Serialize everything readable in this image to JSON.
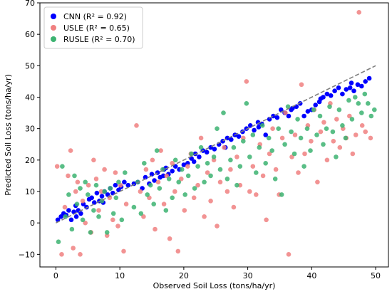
{
  "chart_data": {
    "type": "scatter",
    "title": "",
    "xlabel": "Observed Soil Loss (tons/ha/yr)",
    "ylabel": "Predicted Soil Loss (tons/ha/yr)",
    "xlim": [
      -2.5,
      52
    ],
    "ylim": [
      -14,
      70
    ],
    "xticks": [
      0,
      10,
      20,
      30,
      40,
      50
    ],
    "yticks": [
      -10,
      0,
      10,
      20,
      30,
      40,
      50,
      60,
      70
    ],
    "grid": false,
    "legend_position": "top-left",
    "reference_line": {
      "x": [
        0,
        50
      ],
      "y": [
        0,
        50
      ],
      "style": "dashed",
      "color": "#7f7f7f"
    },
    "series": [
      {
        "name": "CNN (R² = 0.92)",
        "color": "#0000ff",
        "points": [
          [
            0.3,
            1
          ],
          [
            0.8,
            2
          ],
          [
            1.2,
            3
          ],
          [
            1.6,
            2.5
          ],
          [
            2,
            4
          ],
          [
            2.4,
            1
          ],
          [
            2.8,
            3.5
          ],
          [
            3.1,
            5.5
          ],
          [
            3.5,
            4
          ],
          [
            3.9,
            3
          ],
          [
            4.3,
            6
          ],
          [
            4.8,
            5
          ],
          [
            5.2,
            7.5
          ],
          [
            5.6,
            8
          ],
          [
            6,
            6.5
          ],
          [
            6.4,
            9.5
          ],
          [
            6.8,
            7
          ],
          [
            7.2,
            8.5
          ],
          [
            7.6,
            10
          ],
          [
            8.1,
            9
          ],
          [
            8.5,
            11
          ],
          [
            8.9,
            9.5
          ],
          [
            9.3,
            12
          ],
          [
            9.8,
            10.5
          ],
          [
            10.2,
            11.5
          ],
          [
            10.7,
            13
          ],
          [
            11.3,
            12
          ],
          [
            12.8,
            13
          ],
          [
            13.5,
            11
          ],
          [
            14,
            14.5
          ],
          [
            14.6,
            12.5
          ],
          [
            15,
            15.5
          ],
          [
            15.4,
            13.5
          ],
          [
            15.9,
            16
          ],
          [
            16.3,
            14.5
          ],
          [
            16.8,
            15
          ],
          [
            17.2,
            17.5
          ],
          [
            17.6,
            15.5
          ],
          [
            18.2,
            16.5
          ],
          [
            18.7,
            18
          ],
          [
            19.3,
            17
          ],
          [
            20,
            18.5
          ],
          [
            20.6,
            19
          ],
          [
            21.2,
            20.5
          ],
          [
            21.8,
            22
          ],
          [
            22.4,
            21
          ],
          [
            23,
            23
          ],
          [
            23.6,
            22.5
          ],
          [
            24.2,
            24
          ],
          [
            24.8,
            23.5
          ],
          [
            25.5,
            25
          ],
          [
            26.1,
            26
          ],
          [
            26.8,
            27
          ],
          [
            27.4,
            26.5
          ],
          [
            28,
            28
          ],
          [
            28.6,
            27.5
          ],
          [
            29.2,
            29
          ],
          [
            29.8,
            30
          ],
          [
            30.4,
            31
          ],
          [
            31,
            29.5
          ],
          [
            31.6,
            32
          ],
          [
            32.2,
            31.5
          ],
          [
            32.8,
            28
          ],
          [
            33.4,
            33
          ],
          [
            34,
            34
          ],
          [
            34.6,
            33.5
          ],
          [
            35.2,
            36
          ],
          [
            35.8,
            35
          ],
          [
            36.4,
            34
          ],
          [
            37,
            36.5
          ],
          [
            37.6,
            37
          ],
          [
            38.2,
            38
          ],
          [
            38.8,
            34
          ],
          [
            39.4,
            35.5
          ],
          [
            40,
            36
          ],
          [
            40.6,
            37.5
          ],
          [
            41.2,
            38.5
          ],
          [
            41.8,
            40
          ],
          [
            42.4,
            41
          ],
          [
            43,
            40.5
          ],
          [
            43.6,
            42
          ],
          [
            44.2,
            43
          ],
          [
            44.8,
            41
          ],
          [
            45.4,
            42.5
          ],
          [
            46,
            43
          ],
          [
            46.6,
            42
          ],
          [
            47.2,
            44
          ],
          [
            47.8,
            43.5
          ],
          [
            48.4,
            45
          ],
          [
            49,
            46
          ],
          [
            3.2,
            2
          ],
          [
            7.4,
            6.5
          ],
          [
            12.2,
            12.5
          ],
          [
            16.9,
            17
          ],
          [
            21.6,
            19.5
          ],
          [
            26.5,
            24
          ],
          [
            31.7,
            30.5
          ],
          [
            36.8,
            36
          ],
          [
            41.4,
            39.5
          ],
          [
            46.2,
            44.5
          ]
        ]
      },
      {
        "name": "USLE (R² = 0.65)",
        "color": "#f08080",
        "points": [
          [
            0.2,
            18
          ],
          [
            0.9,
            -10
          ],
          [
            1.4,
            5
          ],
          [
            1.9,
            15
          ],
          [
            2.3,
            23
          ],
          [
            2.7,
            -8
          ],
          [
            3.1,
            10
          ],
          [
            3.4,
            13
          ],
          [
            3.8,
            -10
          ],
          [
            4.2,
            7
          ],
          [
            4.6,
            0
          ],
          [
            5.1,
            12
          ],
          [
            5.5,
            -3
          ],
          [
            5.9,
            20
          ],
          [
            6.3,
            14
          ],
          [
            6.7,
            4
          ],
          [
            7.1,
            10
          ],
          [
            7.6,
            17
          ],
          [
            8,
            -4
          ],
          [
            8.4,
            8
          ],
          [
            8.9,
            1
          ],
          [
            9.3,
            16
          ],
          [
            9.7,
            -1
          ],
          [
            10.1,
            12
          ],
          [
            10.6,
            -9
          ],
          [
            11,
            6
          ],
          [
            12.6,
            31
          ],
          [
            13.2,
            10
          ],
          [
            13.7,
            2
          ],
          [
            14.1,
            17
          ],
          [
            14.6,
            8
          ],
          [
            15.1,
            20
          ],
          [
            15.5,
            -2
          ],
          [
            16,
            13
          ],
          [
            16.4,
            23
          ],
          [
            16.9,
            6
          ],
          [
            17.3,
            15
          ],
          [
            17.8,
            -5
          ],
          [
            18.2,
            19
          ],
          [
            18.6,
            10
          ],
          [
            19.1,
            -9
          ],
          [
            19.6,
            14
          ],
          [
            20.1,
            4
          ],
          [
            20.6,
            18
          ],
          [
            21.1,
            22
          ],
          [
            21.6,
            8
          ],
          [
            22.2,
            12
          ],
          [
            22.7,
            27
          ],
          [
            23.2,
            2
          ],
          [
            23.7,
            16
          ],
          [
            24.2,
            7
          ],
          [
            24.7,
            20
          ],
          [
            25.2,
            -1
          ],
          [
            25.7,
            13
          ],
          [
            26.3,
            24
          ],
          [
            26.8,
            10
          ],
          [
            27.3,
            17
          ],
          [
            27.8,
            5
          ],
          [
            28.3,
            21
          ],
          [
            28.8,
            12
          ],
          [
            29.3,
            27
          ],
          [
            29.8,
            45
          ],
          [
            30.3,
            10
          ],
          [
            30.8,
            18
          ],
          [
            31.3,
            9
          ],
          [
            31.9,
            25
          ],
          [
            32.4,
            15
          ],
          [
            32.9,
            1
          ],
          [
            33.4,
            22
          ],
          [
            33.9,
            30
          ],
          [
            34.4,
            17
          ],
          [
            34.9,
            9
          ],
          [
            35.4,
            27
          ],
          [
            35.9,
            35
          ],
          [
            36.4,
            -10
          ],
          [
            36.9,
            21
          ],
          [
            37.4,
            28
          ],
          [
            37.9,
            16
          ],
          [
            38.4,
            44
          ],
          [
            38.9,
            22
          ],
          [
            39.4,
            31
          ],
          [
            39.9,
            26
          ],
          [
            40.4,
            36
          ],
          [
            40.9,
            13
          ],
          [
            41.4,
            29
          ],
          [
            41.9,
            32
          ],
          [
            42.4,
            20
          ],
          [
            42.9,
            38
          ],
          [
            43.4,
            26
          ],
          [
            43.9,
            33
          ],
          [
            44.4,
            24
          ],
          [
            44.9,
            30
          ],
          [
            45.4,
            27
          ],
          [
            45.9,
            34
          ],
          [
            46.4,
            22
          ],
          [
            46.9,
            28
          ],
          [
            47.4,
            67
          ],
          [
            47.9,
            31
          ],
          [
            48.4,
            29
          ],
          [
            49.2,
            27
          ]
        ]
      },
      {
        "name": "RUSLE (R² = 0.70)",
        "color": "#3cb371",
        "points": [
          [
            0.4,
            -6
          ],
          [
            1,
            18
          ],
          [
            1.5,
            2
          ],
          [
            2,
            9
          ],
          [
            2.5,
            -2
          ],
          [
            2.9,
            15
          ],
          [
            3.3,
            6
          ],
          [
            3.8,
            11
          ],
          [
            4.2,
            1
          ],
          [
            4.6,
            13
          ],
          [
            5,
            9
          ],
          [
            5.4,
            -3
          ],
          [
            5.9,
            4
          ],
          [
            6.3,
            12
          ],
          [
            6.7,
            2
          ],
          [
            7.2,
            7
          ],
          [
            7.6,
            10
          ],
          [
            8,
            -3
          ],
          [
            8.5,
            11
          ],
          [
            9,
            3
          ],
          [
            9.4,
            8
          ],
          [
            9.8,
            13
          ],
          [
            10.3,
            1
          ],
          [
            10.8,
            16
          ],
          [
            12.2,
            5
          ],
          [
            12.8,
            13
          ],
          [
            13.3,
            3
          ],
          [
            13.8,
            19
          ],
          [
            14.3,
            9
          ],
          [
            14.8,
            12
          ],
          [
            15.3,
            6
          ],
          [
            15.8,
            23
          ],
          [
            16.2,
            11
          ],
          [
            16.7,
            17
          ],
          [
            17.2,
            4
          ],
          [
            17.7,
            14
          ],
          [
            18.2,
            8
          ],
          [
            18.7,
            20
          ],
          [
            19.2,
            13
          ],
          [
            19.7,
            17
          ],
          [
            20.2,
            9
          ],
          [
            20.7,
            15
          ],
          [
            21.2,
            22
          ],
          [
            21.7,
            11
          ],
          [
            22.2,
            18
          ],
          [
            22.7,
            24
          ],
          [
            23.2,
            13
          ],
          [
            23.7,
            19
          ],
          [
            24.2,
            15
          ],
          [
            24.7,
            21
          ],
          [
            25.2,
            30
          ],
          [
            25.7,
            17
          ],
          [
            26.2,
            35
          ],
          [
            26.8,
            14
          ],
          [
            27.3,
            20
          ],
          [
            27.8,
            24
          ],
          [
            28.3,
            12
          ],
          [
            28.8,
            18
          ],
          [
            29.3,
            26
          ],
          [
            29.8,
            38
          ],
          [
            30.3,
            21
          ],
          [
            30.8,
            28
          ],
          [
            31.3,
            16
          ],
          [
            31.8,
            24
          ],
          [
            32.3,
            31
          ],
          [
            32.8,
            19
          ],
          [
            33.3,
            27
          ],
          [
            33.8,
            23
          ],
          [
            34.3,
            14
          ],
          [
            34.8,
            30
          ],
          [
            35.3,
            9
          ],
          [
            35.8,
            25
          ],
          [
            36.3,
            37
          ],
          [
            36.8,
            29
          ],
          [
            37.3,
            22
          ],
          [
            37.8,
            33
          ],
          [
            38.3,
            27
          ],
          [
            38.8,
            18
          ],
          [
            39.3,
            30
          ],
          [
            39.8,
            23
          ],
          [
            40.3,
            36
          ],
          [
            40.8,
            28
          ],
          [
            41.3,
            34
          ],
          [
            41.8,
            25
          ],
          [
            42.3,
            30
          ],
          [
            42.8,
            37
          ],
          [
            43.3,
            29
          ],
          [
            43.8,
            21
          ],
          [
            44.3,
            36
          ],
          [
            44.8,
            31
          ],
          [
            45.3,
            27
          ],
          [
            45.8,
            39
          ],
          [
            46.3,
            33
          ],
          [
            46.8,
            40
          ],
          [
            47.3,
            38
          ],
          [
            47.8,
            35
          ],
          [
            48.3,
            41
          ],
          [
            48.8,
            38
          ],
          [
            49.3,
            34
          ],
          [
            49.8,
            36
          ]
        ]
      }
    ]
  }
}
